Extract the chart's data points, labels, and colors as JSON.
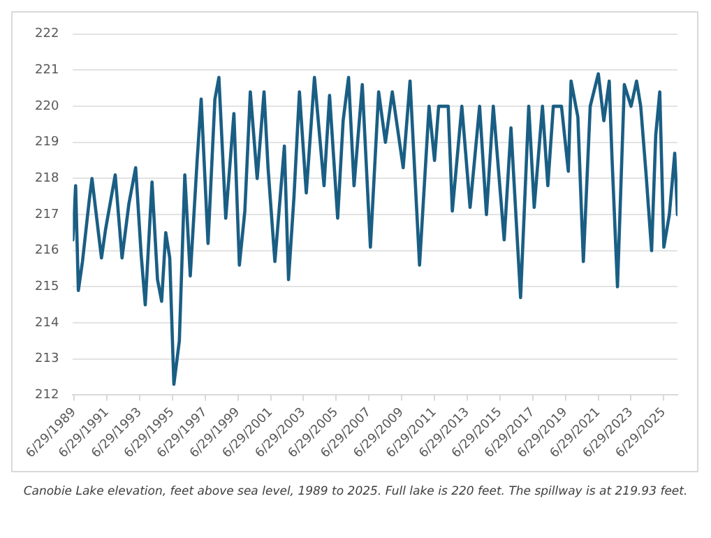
{
  "chart_data": {
    "type": "line",
    "annotations": [
      "Canobie Lake elevation, feet above sea level, 1989 to 2025. Full lake is 220 feet. The spillway is at 219.93 feet."
    ],
    "x": [
      "1989-06",
      "1989-08",
      "1989-10",
      "1990-01",
      "1990-06",
      "1990-08",
      "1991-01",
      "1991-03",
      "1991-06",
      "1992-01",
      "1992-06",
      "1992-11",
      "1993-04",
      "1993-08",
      "1993-11",
      "1994-04",
      "1994-08",
      "1994-11",
      "1995-02",
      "1995-05",
      "1995-08",
      "1995-12",
      "1996-04",
      "1996-08",
      "1997-01",
      "1997-04",
      "1997-09",
      "1998-02",
      "1998-05",
      "1998-10",
      "1999-04",
      "1999-08",
      "1999-12",
      "2000-04",
      "2000-09",
      "2001-02",
      "2001-05",
      "2001-10",
      "2002-05",
      "2002-08",
      "2002-12",
      "2003-04",
      "2003-09",
      "2004-03",
      "2004-10",
      "2005-02",
      "2005-08",
      "2005-12",
      "2006-04",
      "2006-08",
      "2007-02",
      "2007-08",
      "2008-02",
      "2008-07",
      "2008-12",
      "2009-08",
      "2010-01",
      "2010-08",
      "2011-03",
      "2011-07",
      "2011-10",
      "2012-05",
      "2012-08",
      "2013-03",
      "2013-09",
      "2014-04",
      "2014-09",
      "2015-02",
      "2015-10",
      "2016-03",
      "2016-10",
      "2017-04",
      "2017-08",
      "2018-02",
      "2018-06",
      "2018-10",
      "2019-04",
      "2019-09",
      "2019-11",
      "2020-04",
      "2020-08",
      "2021-01",
      "2021-07",
      "2021-11",
      "2022-03",
      "2022-05",
      "2022-09",
      "2023-02",
      "2023-07",
      "2023-11",
      "2024-02",
      "2024-06",
      "2024-10",
      "2025-01",
      "2025-04",
      "2025-07",
      "2025-11",
      "2026-03",
      "2026-05"
    ],
    "series": [
      {
        "color": "#1a5e84",
        "values": [
          216.3,
          217.8,
          214.9,
          215.7,
          217.4,
          218.0,
          216.4,
          215.8,
          216.6,
          218.1,
          215.8,
          217.3,
          218.3,
          215.9,
          214.5,
          217.9,
          215.2,
          214.6,
          216.5,
          215.8,
          212.3,
          213.5,
          218.1,
          215.3,
          218.5,
          220.2,
          216.2,
          220.2,
          220.8,
          216.9,
          219.8,
          215.6,
          217.1,
          220.4,
          218.0,
          220.4,
          218.3,
          215.7,
          218.9,
          215.2,
          217.5,
          220.4,
          217.6,
          220.8,
          217.8,
          220.3,
          216.9,
          219.6,
          220.8,
          217.8,
          220.6,
          216.1,
          220.4,
          219.0,
          220.4,
          218.3,
          220.7,
          215.6,
          220.0,
          218.5,
          220.0,
          220.0,
          217.1,
          220.0,
          217.2,
          220.0,
          217.0,
          220.0,
          216.3,
          219.4,
          214.7,
          220.0,
          217.2,
          220.0,
          217.8,
          220.0,
          220.0,
          218.2,
          220.7,
          219.7,
          215.7,
          220.0,
          220.9,
          219.6,
          220.7,
          218.6,
          215.0,
          220.6,
          220.0,
          220.7,
          220.0,
          218.1,
          216.0,
          219.2,
          220.4,
          216.1,
          217.0,
          218.7,
          217.0
        ]
      }
    ],
    "xlim": [
      "1989-06",
      "2026-05"
    ],
    "xticks": [
      {
        "value": "1989-06-29",
        "label": "6/29/1989"
      },
      {
        "value": "1991-06-29",
        "label": "6/29/1991"
      },
      {
        "value": "1993-06-29",
        "label": "6/29/1993"
      },
      {
        "value": "1995-06-29",
        "label": "6/29/1995"
      },
      {
        "value": "1997-06-29",
        "label": "6/29/1997"
      },
      {
        "value": "1999-06-29",
        "label": "6/29/1999"
      },
      {
        "value": "2001-06-29",
        "label": "6/29/2001"
      },
      {
        "value": "2003-06-29",
        "label": "6/29/2003"
      },
      {
        "value": "2005-06-29",
        "label": "6/29/2005"
      },
      {
        "value": "2007-06-29",
        "label": "6/29/2007"
      },
      {
        "value": "2009-06-29",
        "label": "6/29/2009"
      },
      {
        "value": "2011-06-29",
        "label": "6/29/2011"
      },
      {
        "value": "2013-06-29",
        "label": "6/29/2013"
      },
      {
        "value": "2015-06-29",
        "label": "6/29/2015"
      },
      {
        "value": "2017-06-29",
        "label": "6/29/2017"
      },
      {
        "value": "2019-06-29",
        "label": "6/29/2019"
      },
      {
        "value": "2021-06-29",
        "label": "6/29/2021"
      },
      {
        "value": "2023-06-29",
        "label": "6/29/2023"
      },
      {
        "value": "2025-06-29",
        "label": "6/29/2025"
      }
    ],
    "ylim": [
      212,
      222
    ],
    "yticks": [
      212,
      213,
      214,
      215,
      216,
      217,
      218,
      219,
      220,
      221,
      222
    ],
    "grid": "y",
    "legend": false,
    "marker": "none",
    "line_style": "solid"
  }
}
